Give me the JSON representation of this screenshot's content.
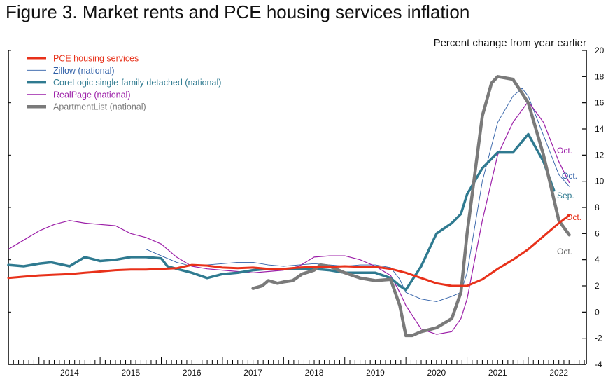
{
  "title": "Figure 3. Market rents and PCE housing services inflation",
  "chart_data": {
    "type": "line",
    "title": "Figure 3. Market rents and PCE housing services inflation",
    "ylabel": "Percent change from year earlier",
    "xlabel": "",
    "ylim": [
      -4,
      20
    ],
    "yticks": [
      -4,
      -2,
      0,
      2,
      4,
      6,
      8,
      10,
      12,
      14,
      16,
      18,
      20
    ],
    "xlim": [
      2013.5,
      2022.95
    ],
    "xtick_labels": [
      "2014",
      "2015",
      "2016",
      "2017",
      "2018",
      "2019",
      "2020",
      "2021",
      "2022"
    ],
    "legend_position": "top-left",
    "grid": false,
    "series": [
      {
        "name": "PCE housing services",
        "color": "#e8311a",
        "end_label": "Oct.",
        "points": [
          [
            2013.5,
            2.6
          ],
          [
            2013.75,
            2.7
          ],
          [
            2014.0,
            2.8
          ],
          [
            2014.25,
            2.85
          ],
          [
            2014.5,
            2.9
          ],
          [
            2014.75,
            3.0
          ],
          [
            2015.0,
            3.1
          ],
          [
            2015.25,
            3.2
          ],
          [
            2015.5,
            3.25
          ],
          [
            2015.75,
            3.25
          ],
          [
            2016.0,
            3.3
          ],
          [
            2016.25,
            3.35
          ],
          [
            2016.5,
            3.6
          ],
          [
            2016.75,
            3.55
          ],
          [
            2017.0,
            3.4
          ],
          [
            2017.25,
            3.35
          ],
          [
            2017.5,
            3.4
          ],
          [
            2017.75,
            3.3
          ],
          [
            2018.0,
            3.3
          ],
          [
            2018.25,
            3.4
          ],
          [
            2018.5,
            3.45
          ],
          [
            2018.75,
            3.45
          ],
          [
            2019.0,
            3.5
          ],
          [
            2019.25,
            3.45
          ],
          [
            2019.5,
            3.45
          ],
          [
            2019.75,
            3.3
          ],
          [
            2020.0,
            3.0
          ],
          [
            2020.25,
            2.6
          ],
          [
            2020.5,
            2.2
          ],
          [
            2020.75,
            2.0
          ],
          [
            2021.0,
            2.0
          ],
          [
            2021.25,
            2.5
          ],
          [
            2021.5,
            3.3
          ],
          [
            2021.75,
            4.0
          ],
          [
            2022.0,
            4.8
          ],
          [
            2022.25,
            5.8
          ],
          [
            2022.5,
            6.8
          ],
          [
            2022.67,
            7.4
          ]
        ]
      },
      {
        "name": "Zillow (national)",
        "color": "#2f5fa7",
        "end_label": "Oct.",
        "points": [
          [
            2015.75,
            4.8
          ],
          [
            2016.0,
            4.3
          ],
          [
            2016.25,
            3.8
          ],
          [
            2016.5,
            3.5
          ],
          [
            2016.75,
            3.6
          ],
          [
            2017.0,
            3.7
          ],
          [
            2017.25,
            3.8
          ],
          [
            2017.5,
            3.8
          ],
          [
            2017.75,
            3.6
          ],
          [
            2018.0,
            3.5
          ],
          [
            2018.25,
            3.6
          ],
          [
            2018.5,
            3.7
          ],
          [
            2018.75,
            3.6
          ],
          [
            2019.0,
            3.5
          ],
          [
            2019.25,
            3.6
          ],
          [
            2019.5,
            3.6
          ],
          [
            2019.75,
            3.4
          ],
          [
            2019.9,
            2.5
          ],
          [
            2020.0,
            1.5
          ],
          [
            2020.25,
            1.0
          ],
          [
            2020.5,
            0.8
          ],
          [
            2020.75,
            1.2
          ],
          [
            2020.9,
            1.5
          ],
          [
            2021.0,
            3.0
          ],
          [
            2021.25,
            10.0
          ],
          [
            2021.5,
            14.5
          ],
          [
            2021.75,
            16.5
          ],
          [
            2021.9,
            17.1
          ],
          [
            2022.0,
            16.5
          ],
          [
            2022.25,
            13.5
          ],
          [
            2022.5,
            10.5
          ],
          [
            2022.67,
            9.6
          ]
        ]
      },
      {
        "name": "CoreLogic single-family detached (national)",
        "color": "#2f7a90",
        "end_label": "Sep.",
        "points": [
          [
            2013.5,
            3.6
          ],
          [
            2013.75,
            3.5
          ],
          [
            2014.0,
            3.7
          ],
          [
            2014.2,
            3.8
          ],
          [
            2014.4,
            3.6
          ],
          [
            2014.5,
            3.5
          ],
          [
            2014.75,
            4.2
          ],
          [
            2015.0,
            3.9
          ],
          [
            2015.25,
            4.0
          ],
          [
            2015.5,
            4.2
          ],
          [
            2015.75,
            4.2
          ],
          [
            2016.0,
            4.1
          ],
          [
            2016.1,
            3.5
          ],
          [
            2016.25,
            3.3
          ],
          [
            2016.5,
            3.0
          ],
          [
            2016.75,
            2.6
          ],
          [
            2017.0,
            2.9
          ],
          [
            2017.25,
            3.0
          ],
          [
            2017.5,
            3.2
          ],
          [
            2017.75,
            3.3
          ],
          [
            2018.0,
            3.3
          ],
          [
            2018.25,
            3.3
          ],
          [
            2018.5,
            3.3
          ],
          [
            2018.75,
            3.2
          ],
          [
            2019.0,
            3.0
          ],
          [
            2019.25,
            3.0
          ],
          [
            2019.5,
            3.0
          ],
          [
            2019.75,
            2.6
          ],
          [
            2019.9,
            2.0
          ],
          [
            2020.0,
            1.7
          ],
          [
            2020.25,
            3.5
          ],
          [
            2020.5,
            6.0
          ],
          [
            2020.75,
            6.8
          ],
          [
            2020.9,
            7.5
          ],
          [
            2021.0,
            9.0
          ],
          [
            2021.25,
            11.0
          ],
          [
            2021.5,
            12.2
          ],
          [
            2021.75,
            12.2
          ],
          [
            2022.0,
            13.6
          ],
          [
            2022.25,
            11.5
          ],
          [
            2022.42,
            9.3
          ]
        ]
      },
      {
        "name": "RealPage (national)",
        "color": "#9c1fa8",
        "end_label": "Oct.",
        "points": [
          [
            2013.5,
            4.8
          ],
          [
            2013.75,
            5.5
          ],
          [
            2014.0,
            6.2
          ],
          [
            2014.25,
            6.7
          ],
          [
            2014.5,
            7.0
          ],
          [
            2014.75,
            6.8
          ],
          [
            2015.0,
            6.7
          ],
          [
            2015.25,
            6.6
          ],
          [
            2015.5,
            6.0
          ],
          [
            2015.75,
            5.7
          ],
          [
            2016.0,
            5.2
          ],
          [
            2016.25,
            4.2
          ],
          [
            2016.5,
            3.5
          ],
          [
            2016.75,
            3.3
          ],
          [
            2017.0,
            3.2
          ],
          [
            2017.25,
            3.1
          ],
          [
            2017.5,
            3.0
          ],
          [
            2017.75,
            3.1
          ],
          [
            2018.0,
            3.2
          ],
          [
            2018.25,
            3.5
          ],
          [
            2018.5,
            4.2
          ],
          [
            2018.75,
            4.3
          ],
          [
            2019.0,
            4.3
          ],
          [
            2019.25,
            4.0
          ],
          [
            2019.5,
            3.5
          ],
          [
            2019.75,
            2.8
          ],
          [
            2019.9,
            1.5
          ],
          [
            2020.0,
            0.5
          ],
          [
            2020.25,
            -1.3
          ],
          [
            2020.5,
            -1.7
          ],
          [
            2020.75,
            -1.5
          ],
          [
            2020.9,
            -0.5
          ],
          [
            2021.0,
            1.0
          ],
          [
            2021.25,
            7.0
          ],
          [
            2021.5,
            12.0
          ],
          [
            2021.75,
            14.5
          ],
          [
            2022.0,
            16.1
          ],
          [
            2022.25,
            14.5
          ],
          [
            2022.5,
            11.5
          ],
          [
            2022.67,
            9.9
          ]
        ]
      },
      {
        "name": "ApartmentList (national)",
        "color": "#7a7a7a",
        "end_label": "Oct.",
        "points": [
          [
            2017.5,
            1.8
          ],
          [
            2017.65,
            2.0
          ],
          [
            2017.75,
            2.4
          ],
          [
            2017.9,
            2.2
          ],
          [
            2018.0,
            2.3
          ],
          [
            2018.15,
            2.4
          ],
          [
            2018.3,
            2.9
          ],
          [
            2018.5,
            3.2
          ],
          [
            2018.6,
            3.6
          ],
          [
            2018.75,
            3.5
          ],
          [
            2019.0,
            3.0
          ],
          [
            2019.25,
            2.6
          ],
          [
            2019.5,
            2.4
          ],
          [
            2019.75,
            2.5
          ],
          [
            2019.9,
            0.5
          ],
          [
            2020.0,
            -1.8
          ],
          [
            2020.1,
            -1.8
          ],
          [
            2020.25,
            -1.5
          ],
          [
            2020.5,
            -1.2
          ],
          [
            2020.75,
            -0.5
          ],
          [
            2020.9,
            1.5
          ],
          [
            2021.0,
            6.0
          ],
          [
            2021.25,
            15.0
          ],
          [
            2021.4,
            17.5
          ],
          [
            2021.5,
            18.0
          ],
          [
            2021.75,
            17.8
          ],
          [
            2022.0,
            16.0
          ],
          [
            2022.25,
            12.0
          ],
          [
            2022.5,
            7.0
          ],
          [
            2022.67,
            5.9
          ]
        ]
      }
    ]
  }
}
